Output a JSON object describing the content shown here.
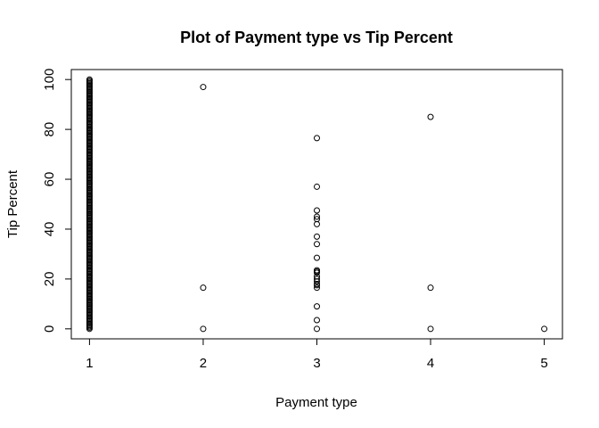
{
  "chart_data": {
    "type": "scatter",
    "title": "Plot of Payment type vs Tip Percent",
    "xlabel": "Payment type",
    "ylabel": "Tip Percent",
    "xlim": [
      0.84,
      5.16
    ],
    "ylim": [
      -4,
      104
    ],
    "x_ticks": [
      1,
      2,
      3,
      4,
      5
    ],
    "y_ticks": [
      0,
      20,
      40,
      60,
      80,
      100
    ],
    "grid": false,
    "legend": "none",
    "marker": "open-circle",
    "series": [
      {
        "dense_column": {
          "x": 1,
          "y_from": 0,
          "y_to": 100
        },
        "x": [
          2,
          2,
          2,
          3,
          3,
          3,
          3,
          3,
          3,
          3,
          3,
          3,
          3,
          3,
          3,
          3,
          3,
          3,
          3,
          3,
          3,
          3,
          3,
          3,
          4,
          4,
          4,
          5
        ],
        "y": [
          97,
          16.5,
          0,
          76.5,
          57,
          47.5,
          45,
          44,
          42,
          37,
          34,
          28.5,
          23.5,
          22.5,
          21,
          20,
          19,
          17.5,
          16.5,
          9,
          0,
          3.5,
          18,
          23,
          85,
          16.5,
          0,
          0
        ]
      }
    ]
  }
}
